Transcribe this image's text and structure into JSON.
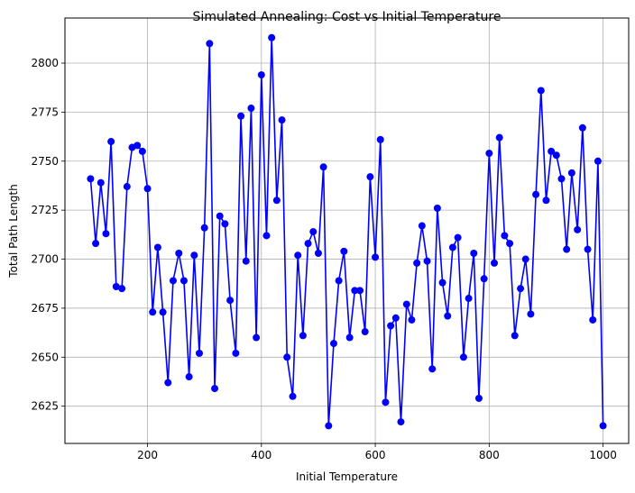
{
  "chart_data": {
    "type": "line",
    "title": "Simulated Annealing: Cost vs Initial Temperature",
    "xlabel": "Initial Temperature",
    "ylabel": "Total Path Length",
    "xlim": [
      55,
      1045
    ],
    "ylim": [
      2606,
      2823
    ],
    "xticks": [
      200,
      400,
      600,
      800,
      1000
    ],
    "yticks": [
      2625,
      2650,
      2675,
      2700,
      2725,
      2750,
      2775,
      2800
    ],
    "grid": true,
    "color": "#0000ff",
    "marker": "circle",
    "x": [
      100,
      109,
      118,
      127,
      136,
      145,
      155,
      164,
      173,
      182,
      191,
      200,
      209,
      218,
      227,
      236,
      245,
      255,
      264,
      273,
      282,
      291,
      300,
      309,
      318,
      327,
      336,
      345,
      355,
      364,
      373,
      382,
      391,
      400,
      409,
      418,
      427,
      436,
      445,
      455,
      464,
      473,
      482,
      491,
      500,
      509,
      518,
      527,
      536,
      545,
      555,
      564,
      573,
      582,
      591,
      600,
      609,
      618,
      627,
      636,
      645,
      655,
      664,
      673,
      682,
      691,
      700,
      709,
      718,
      727,
      736,
      745,
      755,
      764,
      773,
      782,
      791,
      800,
      809,
      818,
      827,
      836,
      845,
      855,
      864,
      873,
      882,
      891,
      900,
      909,
      918,
      927,
      936,
      945,
      955,
      964,
      973,
      982,
      991,
      1000
    ],
    "y": [
      2741,
      2708,
      2739,
      2713,
      2760,
      2686,
      2685,
      2737,
      2757,
      2758,
      2755,
      2736,
      2673,
      2706,
      2673,
      2637,
      2689,
      2703,
      2689,
      2640,
      2702,
      2652,
      2716,
      2810,
      2634,
      2722,
      2718,
      2679,
      2652,
      2773,
      2699,
      2777,
      2660,
      2794,
      2712,
      2813,
      2730,
      2771,
      2650,
      2630,
      2702,
      2661,
      2708,
      2714,
      2703,
      2747,
      2615,
      2657,
      2689,
      2704,
      2660,
      2684,
      2684,
      2663,
      2742,
      2701,
      2761,
      2627,
      2666,
      2670,
      2617,
      2677,
      2669,
      2698,
      2717,
      2699,
      2644,
      2726,
      2688,
      2671,
      2706,
      2711,
      2650,
      2680,
      2703,
      2629,
      2690,
      2754,
      2698,
      2762,
      2712,
      2708,
      2661,
      2685,
      2700,
      2672,
      2733,
      2786,
      2730,
      2755,
      2753,
      2741,
      2705,
      2744,
      2715,
      2767,
      2705,
      2669,
      2750,
      2615
    ]
  }
}
